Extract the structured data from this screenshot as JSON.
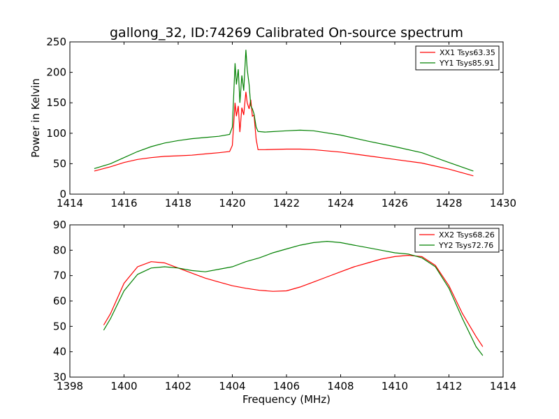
{
  "chart_data": [
    {
      "type": "line",
      "title": "gallong_32, ID:74269 Calibrated On-source spectrum",
      "xlabel": "",
      "ylabel": "Power in Kelvin",
      "xlim": [
        1414,
        1430
      ],
      "ylim": [
        0,
        250
      ],
      "xticks": [
        1414,
        1416,
        1418,
        1420,
        1422,
        1424,
        1426,
        1428,
        1430
      ],
      "yticks": [
        0,
        50,
        100,
        150,
        200,
        250
      ],
      "legend": "upper right",
      "grid": false,
      "series": [
        {
          "name": "XX1 Tsys63.35",
          "color": "#ff0000",
          "points": [
            [
              1414.9,
              38
            ],
            [
              1415.5,
              45
            ],
            [
              1416.0,
              52
            ],
            [
              1416.5,
              57
            ],
            [
              1417.0,
              60
            ],
            [
              1417.5,
              62
            ],
            [
              1418.0,
              63
            ],
            [
              1418.5,
              64
            ],
            [
              1419.0,
              66
            ],
            [
              1419.5,
              68
            ],
            [
              1419.9,
              70
            ],
            [
              1420.0,
              80
            ],
            [
              1420.1,
              150
            ],
            [
              1420.15,
              128
            ],
            [
              1420.22,
              145
            ],
            [
              1420.28,
              102
            ],
            [
              1420.35,
              142
            ],
            [
              1420.42,
              130
            ],
            [
              1420.5,
              168
            ],
            [
              1420.55,
              150
            ],
            [
              1420.62,
              140
            ],
            [
              1420.68,
              155
            ],
            [
              1420.74,
              128
            ],
            [
              1420.8,
              130
            ],
            [
              1420.88,
              90
            ],
            [
              1420.95,
              73
            ],
            [
              1421.2,
              73
            ],
            [
              1422.0,
              74
            ],
            [
              1422.5,
              74
            ],
            [
              1423.0,
              73
            ],
            [
              1424.0,
              69
            ],
            [
              1425.0,
              63
            ],
            [
              1426.0,
              57
            ],
            [
              1427.0,
              51
            ],
            [
              1428.0,
              41
            ],
            [
              1428.9,
              30
            ]
          ]
        },
        {
          "name": "YY1 Tsys85.91",
          "color": "#008000",
          "points": [
            [
              1414.9,
              42
            ],
            [
              1415.5,
              50
            ],
            [
              1416.0,
              60
            ],
            [
              1416.5,
              70
            ],
            [
              1417.0,
              78
            ],
            [
              1417.5,
              84
            ],
            [
              1418.0,
              88
            ],
            [
              1418.5,
              91
            ],
            [
              1419.0,
              93
            ],
            [
              1419.5,
              95
            ],
            [
              1419.9,
              98
            ],
            [
              1420.0,
              110
            ],
            [
              1420.1,
              215
            ],
            [
              1420.15,
              180
            ],
            [
              1420.22,
              205
            ],
            [
              1420.28,
              150
            ],
            [
              1420.35,
              195
            ],
            [
              1420.42,
              170
            ],
            [
              1420.5,
              237
            ],
            [
              1420.55,
              205
            ],
            [
              1420.62,
              180
            ],
            [
              1420.68,
              145
            ],
            [
              1420.74,
              140
            ],
            [
              1420.8,
              132
            ],
            [
              1420.88,
              110
            ],
            [
              1420.95,
              103
            ],
            [
              1421.2,
              102
            ],
            [
              1422.0,
              104
            ],
            [
              1422.5,
              105
            ],
            [
              1423.0,
              104
            ],
            [
              1424.0,
              97
            ],
            [
              1425.0,
              87
            ],
            [
              1426.0,
              78
            ],
            [
              1427.0,
              68
            ],
            [
              1428.0,
              52
            ],
            [
              1428.9,
              38
            ]
          ]
        }
      ]
    },
    {
      "type": "line",
      "title": "",
      "xlabel": "Frequency (MHz)",
      "ylabel": "",
      "xlim": [
        1398,
        1414
      ],
      "ylim": [
        30,
        90
      ],
      "xticks": [
        1398,
        1400,
        1402,
        1404,
        1406,
        1408,
        1410,
        1412,
        1414
      ],
      "yticks": [
        30,
        40,
        50,
        60,
        70,
        80,
        90
      ],
      "legend": "upper right",
      "grid": false,
      "series": [
        {
          "name": "XX2 Tsys68.26",
          "color": "#ff0000",
          "points": [
            [
              1399.25,
              50.5
            ],
            [
              1399.5,
              55
            ],
            [
              1400.0,
              67
            ],
            [
              1400.5,
              73.5
            ],
            [
              1401.0,
              75.5
            ],
            [
              1401.5,
              75
            ],
            [
              1402.0,
              73
            ],
            [
              1402.5,
              71
            ],
            [
              1403.0,
              69
            ],
            [
              1403.5,
              67.5
            ],
            [
              1404.0,
              66
            ],
            [
              1404.5,
              65
            ],
            [
              1405.0,
              64.2
            ],
            [
              1405.5,
              63.8
            ],
            [
              1406.0,
              64
            ],
            [
              1406.5,
              65.5
            ],
            [
              1407.0,
              67.5
            ],
            [
              1407.5,
              69.5
            ],
            [
              1408.0,
              71.5
            ],
            [
              1408.5,
              73.5
            ],
            [
              1409.0,
              75
            ],
            [
              1409.5,
              76.5
            ],
            [
              1410.0,
              77.5
            ],
            [
              1410.5,
              78
            ],
            [
              1411.0,
              77.5
            ],
            [
              1411.5,
              74
            ],
            [
              1412.0,
              66
            ],
            [
              1412.5,
              55
            ],
            [
              1413.0,
              46
            ],
            [
              1413.25,
              42
            ]
          ]
        },
        {
          "name": "YY2 Tsys72.76",
          "color": "#008000",
          "points": [
            [
              1399.25,
              48.5
            ],
            [
              1399.5,
              53
            ],
            [
              1400.0,
              64
            ],
            [
              1400.5,
              70.5
            ],
            [
              1401.0,
              73
            ],
            [
              1401.5,
              73.5
            ],
            [
              1402.0,
              73
            ],
            [
              1402.5,
              72
            ],
            [
              1403.0,
              71.5
            ],
            [
              1403.5,
              72.5
            ],
            [
              1404.0,
              73.5
            ],
            [
              1404.5,
              75.5
            ],
            [
              1405.0,
              77
            ],
            [
              1405.5,
              79
            ],
            [
              1406.0,
              80.5
            ],
            [
              1406.5,
              82
            ],
            [
              1407.0,
              83
            ],
            [
              1407.5,
              83.5
            ],
            [
              1408.0,
              83
            ],
            [
              1408.5,
              82
            ],
            [
              1409.0,
              81
            ],
            [
              1409.5,
              80
            ],
            [
              1410.0,
              79
            ],
            [
              1410.5,
              78.5
            ],
            [
              1411.0,
              77
            ],
            [
              1411.5,
              73.5
            ],
            [
              1412.0,
              65
            ],
            [
              1412.5,
              53
            ],
            [
              1413.0,
              42
            ],
            [
              1413.25,
              38.5
            ]
          ]
        }
      ]
    }
  ]
}
